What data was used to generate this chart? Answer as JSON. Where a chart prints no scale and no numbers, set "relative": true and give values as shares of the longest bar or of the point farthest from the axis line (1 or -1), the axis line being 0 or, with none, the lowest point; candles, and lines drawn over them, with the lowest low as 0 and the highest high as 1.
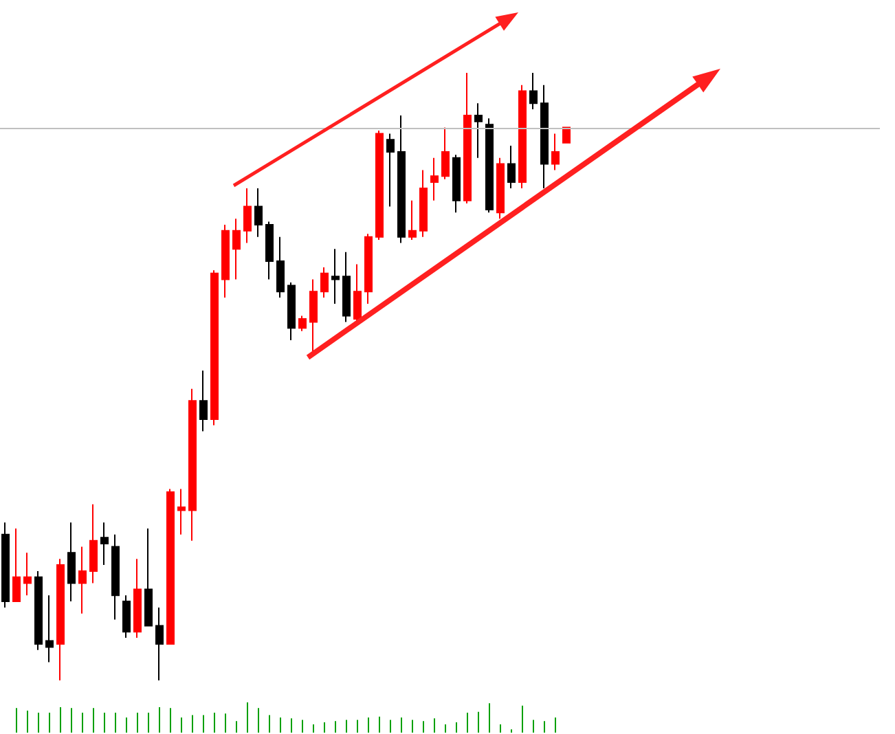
{
  "chart_data": [
    {
      "type": "candlestick",
      "relative": true,
      "categories": [
        null,
        null,
        null,
        null,
        null,
        null,
        null,
        null,
        null,
        null,
        null,
        null,
        null,
        null,
        null,
        null,
        null,
        null,
        null,
        null,
        null,
        null,
        null,
        null,
        null,
        null,
        null,
        null,
        null,
        null,
        null,
        null,
        null,
        null,
        null,
        null,
        null,
        null,
        null,
        null,
        null,
        null,
        null,
        null,
        null,
        null,
        null,
        null,
        null,
        null,
        null,
        null
      ],
      "ref_lines": [
        {
          "axis": "y",
          "value": 0.91,
          "color": "#c0c0c0"
        }
      ],
      "series": [
        {
          "ohlc": [
            [
              0.24,
              0.26,
              0.12,
              0.13
            ],
            [
              0.13,
              0.25,
              0.13,
              0.17
            ],
            [
              0.16,
              0.21,
              0.14,
              0.17
            ],
            [
              0.17,
              0.18,
              0.05,
              0.06
            ],
            [
              0.065,
              0.14,
              0.03,
              0.055
            ],
            [
              0.06,
              0.2,
              0,
              0.19
            ],
            [
              0.21,
              0.26,
              0.13,
              0.16
            ],
            [
              0.16,
              0.22,
              0.11,
              0.18
            ],
            [
              0.18,
              0.29,
              0.16,
              0.23
            ],
            [
              0.235,
              0.26,
              0.19,
              0.225
            ],
            [
              0.22,
              0.24,
              0.1,
              0.14
            ],
            [
              0.13,
              0.14,
              0.07,
              0.08
            ],
            [
              0.08,
              0.2,
              0.07,
              0.15
            ],
            [
              0.15,
              0.25,
              0.09,
              0.09
            ],
            [
              0.09,
              0.12,
              0,
              0.06
            ],
            [
              0.06,
              0.315,
              0.06,
              0.31
            ],
            [
              0.28,
              0.315,
              0.24,
              0.285
            ],
            [
              0.28,
              0.48,
              0.23,
              0.46
            ],
            [
              0.46,
              0.51,
              0.41,
              0.43
            ],
            [
              0.43,
              0.675,
              0.42,
              0.67
            ],
            [
              0.66,
              0.75,
              0.63,
              0.74
            ],
            [
              0.71,
              0.76,
              0.66,
              0.74
            ],
            [
              0.74,
              0.81,
              0.72,
              0.78
            ],
            [
              0.78,
              0.81,
              0.73,
              0.75
            ],
            [
              0.75,
              0.755,
              0.66,
              0.69
            ],
            [
              0.69,
              0.73,
              0.63,
              0.64
            ],
            [
              0.65,
              0.655,
              0.56,
              0.58
            ],
            [
              0.58,
              0.6,
              0.575,
              0.595
            ],
            [
              0.59,
              0.66,
              0.54,
              0.64
            ],
            [
              0.64,
              0.68,
              0.63,
              0.67
            ],
            [
              0.665,
              0.71,
              0.62,
              0.66
            ],
            [
              0.665,
              0.705,
              0.59,
              0.6
            ],
            [
              0.595,
              0.685,
              0.59,
              0.64
            ],
            [
              0.64,
              0.735,
              0.62,
              0.73
            ],
            [
              0.73,
              0.905,
              0.725,
              0.9
            ],
            [
              0.89,
              0.9,
              0.78,
              0.87
            ],
            [
              0.87,
              0.93,
              0.72,
              0.73
            ],
            [
              0.73,
              0.79,
              0.725,
              0.74
            ],
            [
              0.74,
              0.84,
              0.73,
              0.81
            ],
            [
              0.82,
              0.86,
              0.79,
              0.83
            ],
            [
              0.83,
              0.91,
              0.825,
              0.87
            ],
            [
              0.86,
              0.865,
              0.77,
              0.79
            ],
            [
              0.79,
              1.0,
              0.785,
              0.93
            ],
            [
              0.93,
              0.95,
              0.86,
              0.92
            ],
            [
              0.915,
              0.925,
              0.77,
              0.775
            ],
            [
              0.77,
              0.86,
              0.76,
              0.85
            ],
            [
              0.85,
              0.88,
              0.81,
              0.82
            ],
            [
              0.82,
              0.98,
              0.81,
              0.97
            ],
            [
              0.97,
              1.0,
              0.94,
              0.95
            ],
            [
              0.95,
              0.98,
              0.81,
              0.85
            ],
            [
              0.85,
              0.9,
              0.84,
              0.87
            ],
            [
              0.885,
              0.91,
              0.885,
              0.91
            ]
          ],
          "colors": [
            "#000000",
            "#ff0000",
            "#ff0000",
            "#000000",
            "#000000",
            "#ff0000",
            "#000000",
            "#ff0000",
            "#ff0000",
            "#000000",
            "#000000",
            "#000000",
            "#ff0000",
            "#000000",
            "#000000",
            "#ff0000",
            "#ff0000",
            "#ff0000",
            "#000000",
            "#ff0000",
            "#ff0000",
            "#ff0000",
            "#ff0000",
            "#000000",
            "#000000",
            "#000000",
            "#000000",
            "#ff0000",
            "#ff0000",
            "#ff0000",
            "#000000",
            "#000000",
            "#ff0000",
            "#ff0000",
            "#ff0000",
            "#000000",
            "#000000",
            "#ff0000",
            "#ff0000",
            "#ff0000",
            "#ff0000",
            "#000000",
            "#ff0000",
            "#000000",
            "#000000",
            "#ff0000",
            "#000000",
            "#ff0000",
            "#000000",
            "#000000",
            "#ff0000",
            "#ff0000"
          ]
        }
      ]
    },
    {
      "type": "bar",
      "relative": true,
      "color": "#00a000",
      "categories": [
        null,
        null,
        null,
        null,
        null,
        null,
        null,
        null,
        null,
        null,
        null,
        null,
        null,
        null,
        null,
        null,
        null,
        null,
        null,
        null,
        null,
        null,
        null,
        null,
        null,
        null,
        null,
        null,
        null,
        null,
        null,
        null,
        null,
        null,
        null,
        null,
        null,
        null,
        null,
        null,
        null,
        null,
        null,
        null,
        null,
        null,
        null,
        null,
        null,
        null,
        null,
        null
      ],
      "values": [
        null,
        0.81,
        0.73,
        0.66,
        0.66,
        0.84,
        0.81,
        0.66,
        0.81,
        0.66,
        0.66,
        0.5,
        0.66,
        0.66,
        0.84,
        0.81,
        0.5,
        0.58,
        0.58,
        0.66,
        0.63,
        0.38,
        1,
        0.81,
        0.58,
        0.5,
        0.47,
        0.42,
        0.27,
        0.34,
        0.38,
        0.42,
        0.42,
        0.5,
        0.53,
        0.42,
        0.5,
        0.42,
        0.38,
        0.47,
        0.27,
        0.34,
        0.66,
        0.69,
        0.97,
        0.27,
        0.11,
        0.89,
        0.42,
        0.38,
        0.5,
        null
      ]
    }
  ]
}
